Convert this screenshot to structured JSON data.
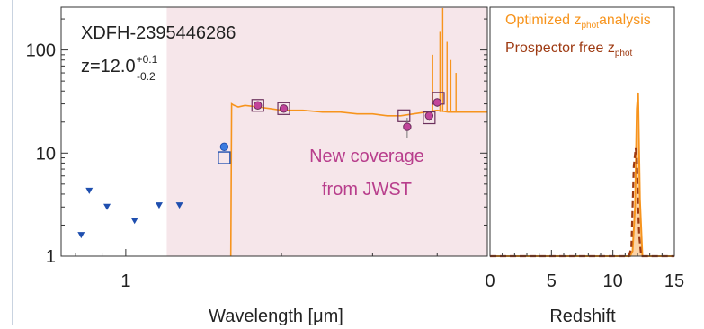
{
  "object_id": "XDFH-2395446286",
  "redshift_label": {
    "base": "z=12.0",
    "sup": "+0.1",
    "sub": "-0.2"
  },
  "coverage_label": {
    "line1": "New coverage",
    "line2": "from JWST"
  },
  "colors": {
    "sed": "#F7941D",
    "shade": "#F6E6EA",
    "blue": "#1F4FAF",
    "magenta": "#B0287F",
    "box": "#6B2F5C",
    "prospector": "#9E3A12",
    "coverage_text": "#B83E8C"
  },
  "chart_data": [
    {
      "type": "scatter",
      "xlabel": "Wavelength [μm]",
      "ylabel": "",
      "xscale": "log",
      "yscale": "log",
      "xlim": [
        0.75,
        5.0
      ],
      "ylim": [
        1.0,
        260.0
      ],
      "xticks": [
        {
          "value": 1,
          "label": "1"
        }
      ],
      "yticks": [
        {
          "value": 1,
          "label": "1"
        },
        {
          "value": 10,
          "label": "10"
        },
        {
          "value": 100,
          "label": "100"
        }
      ],
      "shaded_region": [
        1.2,
        5.0
      ],
      "series": [
        {
          "role": "upper_limits",
          "x": [
            0.82,
            0.85,
            0.92,
            1.04,
            1.16,
            1.27
          ],
          "y": [
            1.6,
            4.3,
            3.0,
            2.2,
            3.1,
            3.1
          ]
        },
        {
          "role": "hst_detection_circle",
          "x": [
            1.55
          ],
          "y": [
            11.5
          ]
        },
        {
          "role": "hst_model_box",
          "x": [
            1.55
          ],
          "y": [
            9.0
          ]
        },
        {
          "role": "jwst_detections",
          "x": [
            1.8,
            2.02,
            3.5,
            3.86,
            4.0
          ],
          "y": [
            29.0,
            27.0,
            18.0,
            23.0,
            31.0
          ],
          "yerr": [
            1.5,
            1.5,
            4.0,
            2.5,
            3.0
          ]
        },
        {
          "role": "jwst_model_boxes",
          "x": [
            1.8,
            2.02,
            3.45,
            3.86,
            4.02
          ],
          "y": [
            29.0,
            27.0,
            23.0,
            22.0,
            34.0
          ]
        },
        {
          "role": "sed_model",
          "x": [
            1.596,
            1.6,
            1.602,
            1.62,
            1.65,
            1.7,
            1.8,
            1.9,
            2.0,
            2.2,
            2.4,
            2.6,
            2.8,
            3.0,
            3.2,
            3.4,
            3.6,
            3.8,
            4.0,
            4.2,
            4.5,
            5.0
          ],
          "y": [
            1.0,
            10.0,
            30.0,
            29.0,
            28.0,
            29.0,
            28.0,
            27.0,
            26.0,
            26.0,
            25.0,
            25.0,
            24.0,
            24.0,
            23.0,
            23.0,
            24.0,
            25.0,
            26.0,
            25.0,
            25.0,
            25.0
          ]
        }
      ]
    },
    {
      "type": "line",
      "xlabel": "Redshift",
      "ylabel": "",
      "xlim": [
        0,
        15
      ],
      "xticks": [
        0,
        5,
        10,
        15
      ],
      "legend_position": "top-left",
      "series": [
        {
          "name": "Optimized z_phot analysis",
          "legend": {
            "main": "Optimized z",
            "sub": "phot",
            "rest": "analysis"
          },
          "style": "solid",
          "x": [
            0,
            11.4,
            11.6,
            11.8,
            11.95,
            12.05,
            12.2,
            12.4,
            15
          ],
          "y": [
            0,
            0,
            0.03,
            0.3,
            0.9,
            1.0,
            0.35,
            0,
            0
          ]
        },
        {
          "name": "Prospector free z_phot",
          "legend": {
            "main": "Prospector free z",
            "sub": "phot",
            "rest": ""
          },
          "style": "dashed",
          "x": [
            0,
            11.3,
            11.5,
            11.7,
            11.85,
            11.95,
            12.05,
            12.15,
            12.3,
            15
          ],
          "y": [
            0,
            0,
            0.05,
            0.55,
            0.66,
            0.6,
            0.3,
            0.12,
            0,
            0
          ]
        }
      ]
    }
  ]
}
